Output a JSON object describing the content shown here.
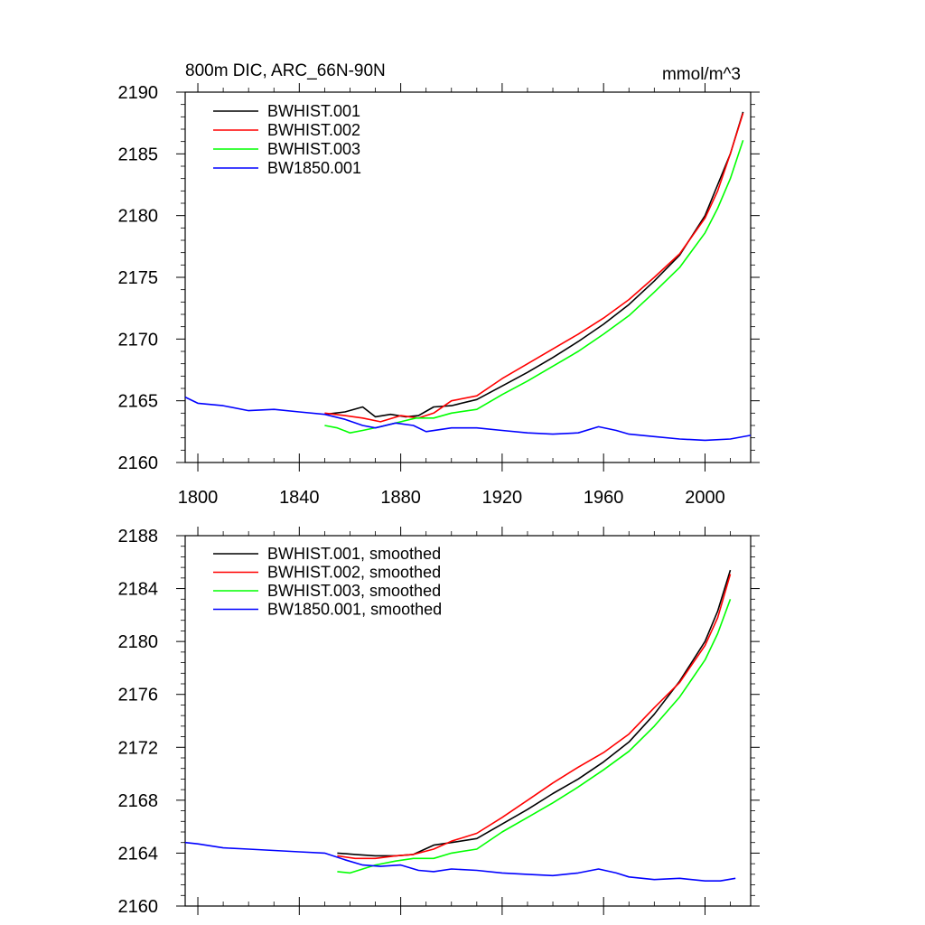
{
  "chart_data": [
    {
      "type": "line",
      "title": "800m DIC, ARC_66N-90N",
      "units": "mmol/m^3",
      "xlim": [
        1795,
        2018
      ],
      "ylim": [
        2160,
        2190
      ],
      "x_ticks": [
        1800,
        1840,
        1880,
        1920,
        1960,
        2000
      ],
      "x_tick_labels": [
        "1800",
        "1840",
        "1880",
        "1920",
        "1960",
        "2000"
      ],
      "y_ticks": [
        2160,
        2165,
        2170,
        2175,
        2180,
        2185,
        2190
      ],
      "y_tick_labels": [
        "2160",
        "2165",
        "2170",
        "2175",
        "2180",
        "2185",
        "2190"
      ],
      "legend_position": "top-left",
      "series": [
        {
          "name": "BWHIST.001",
          "color": "#000000",
          "x": [
            1850,
            1858,
            1865,
            1870,
            1876,
            1882,
            1887,
            1893,
            1900,
            1910,
            1920,
            1930,
            1940,
            1950,
            1960,
            1970,
            1980,
            1990,
            2000,
            2005,
            2010,
            2015
          ],
          "y": [
            2163.9,
            2164.1,
            2164.5,
            2163.7,
            2163.9,
            2163.7,
            2163.8,
            2164.5,
            2164.6,
            2165.1,
            2166.2,
            2167.3,
            2168.5,
            2169.8,
            2171.2,
            2172.8,
            2174.7,
            2176.8,
            2180.0,
            2182.5,
            2185.0,
            2188.4
          ]
        },
        {
          "name": "BWHIST.002",
          "color": "#ff0000",
          "x": [
            1850,
            1858,
            1865,
            1872,
            1880,
            1887,
            1893,
            1900,
            1910,
            1920,
            1930,
            1940,
            1950,
            1960,
            1970,
            1980,
            1990,
            2000,
            2005,
            2010,
            2015
          ],
          "y": [
            2164.0,
            2163.8,
            2163.6,
            2163.3,
            2163.8,
            2163.6,
            2164.0,
            2165.0,
            2165.4,
            2166.8,
            2168.0,
            2169.2,
            2170.4,
            2171.7,
            2173.2,
            2175.0,
            2176.9,
            2179.8,
            2182.0,
            2185.0,
            2188.3
          ]
        },
        {
          "name": "BWHIST.003",
          "color": "#00ff00",
          "x": [
            1850,
            1855,
            1860,
            1865,
            1872,
            1880,
            1886,
            1893,
            1900,
            1910,
            1920,
            1930,
            1940,
            1950,
            1960,
            1970,
            1980,
            1990,
            2000,
            2005,
            2010,
            2015
          ],
          "y": [
            2163.0,
            2162.8,
            2162.4,
            2162.6,
            2162.9,
            2163.3,
            2163.6,
            2163.6,
            2164.0,
            2164.3,
            2165.5,
            2166.6,
            2167.8,
            2169.0,
            2170.4,
            2171.9,
            2173.8,
            2175.8,
            2178.6,
            2180.6,
            2183.0,
            2186.1
          ]
        },
        {
          "name": "BW1850.001",
          "color": "#0000ff",
          "x": [
            1795,
            1800,
            1810,
            1820,
            1830,
            1840,
            1850,
            1858,
            1865,
            1870,
            1878,
            1885,
            1890,
            1900,
            1910,
            1920,
            1930,
            1940,
            1950,
            1958,
            1965,
            1970,
            1980,
            1990,
            2000,
            2010,
            2018
          ],
          "y": [
            2165.3,
            2164.8,
            2164.6,
            2164.2,
            2164.3,
            2164.1,
            2163.9,
            2163.5,
            2163.0,
            2162.8,
            2163.2,
            2163.0,
            2162.5,
            2162.8,
            2162.8,
            2162.6,
            2162.4,
            2162.3,
            2162.4,
            2162.9,
            2162.6,
            2162.3,
            2162.1,
            2161.9,
            2161.8,
            2161.9,
            2162.2
          ]
        }
      ]
    },
    {
      "type": "line",
      "xlim": [
        1795,
        2018
      ],
      "ylim": [
        2160,
        2188
      ],
      "x_ticks": [
        1800,
        1840,
        1880,
        1920,
        1960,
        2000
      ],
      "y_ticks": [
        2160,
        2164,
        2168,
        2172,
        2176,
        2180,
        2184,
        2188
      ],
      "y_tick_labels": [
        "2160",
        "2164",
        "2168",
        "2172",
        "2176",
        "2180",
        "2184",
        "2188"
      ],
      "legend_position": "top-left",
      "series": [
        {
          "name": "BWHIST.001, smoothed",
          "color": "#000000",
          "x": [
            1855,
            1862,
            1870,
            1878,
            1885,
            1893,
            1900,
            1910,
            1920,
            1930,
            1940,
            1950,
            1960,
            1970,
            1980,
            1990,
            2000,
            2005,
            2010
          ],
          "y": [
            2164.0,
            2163.9,
            2163.8,
            2163.8,
            2163.9,
            2164.6,
            2164.8,
            2165.1,
            2166.2,
            2167.3,
            2168.5,
            2169.6,
            2170.9,
            2172.4,
            2174.5,
            2177.0,
            2180.0,
            2182.3,
            2185.4
          ]
        },
        {
          "name": "BWHIST.002, smoothed",
          "color": "#ff0000",
          "x": [
            1855,
            1862,
            1870,
            1878,
            1885,
            1893,
            1900,
            1910,
            1920,
            1930,
            1940,
            1950,
            1960,
            1970,
            1980,
            1990,
            2000,
            2005,
            2010
          ],
          "y": [
            2163.8,
            2163.6,
            2163.6,
            2163.8,
            2163.9,
            2164.3,
            2164.9,
            2165.5,
            2166.7,
            2168.0,
            2169.3,
            2170.5,
            2171.6,
            2173.0,
            2175.0,
            2176.9,
            2179.7,
            2181.8,
            2185.1
          ]
        },
        {
          "name": "BWHIST.003, smoothed",
          "color": "#00ff00",
          "x": [
            1855,
            1860,
            1865,
            1870,
            1878,
            1885,
            1893,
            1900,
            1910,
            1920,
            1930,
            1940,
            1950,
            1960,
            1970,
            1980,
            1990,
            2000,
            2005,
            2010
          ],
          "y": [
            2162.6,
            2162.5,
            2162.8,
            2163.1,
            2163.4,
            2163.6,
            2163.6,
            2164.0,
            2164.3,
            2165.6,
            2166.7,
            2167.8,
            2169.0,
            2170.3,
            2171.7,
            2173.6,
            2175.8,
            2178.6,
            2180.6,
            2183.2
          ]
        },
        {
          "name": "BW1850.001, smoothed",
          "color": "#0000ff",
          "x": [
            1795,
            1800,
            1810,
            1820,
            1830,
            1840,
            1850,
            1858,
            1865,
            1872,
            1880,
            1887,
            1893,
            1900,
            1910,
            1920,
            1930,
            1940,
            1950,
            1958,
            1965,
            1970,
            1980,
            1990,
            2000,
            2006,
            2012
          ],
          "y": [
            2164.8,
            2164.7,
            2164.4,
            2164.3,
            2164.2,
            2164.1,
            2164.0,
            2163.5,
            2163.1,
            2163.0,
            2163.1,
            2162.7,
            2162.6,
            2162.8,
            2162.7,
            2162.5,
            2162.4,
            2162.3,
            2162.5,
            2162.8,
            2162.5,
            2162.2,
            2162.0,
            2162.1,
            2161.9,
            2161.9,
            2162.1
          ]
        }
      ]
    }
  ]
}
